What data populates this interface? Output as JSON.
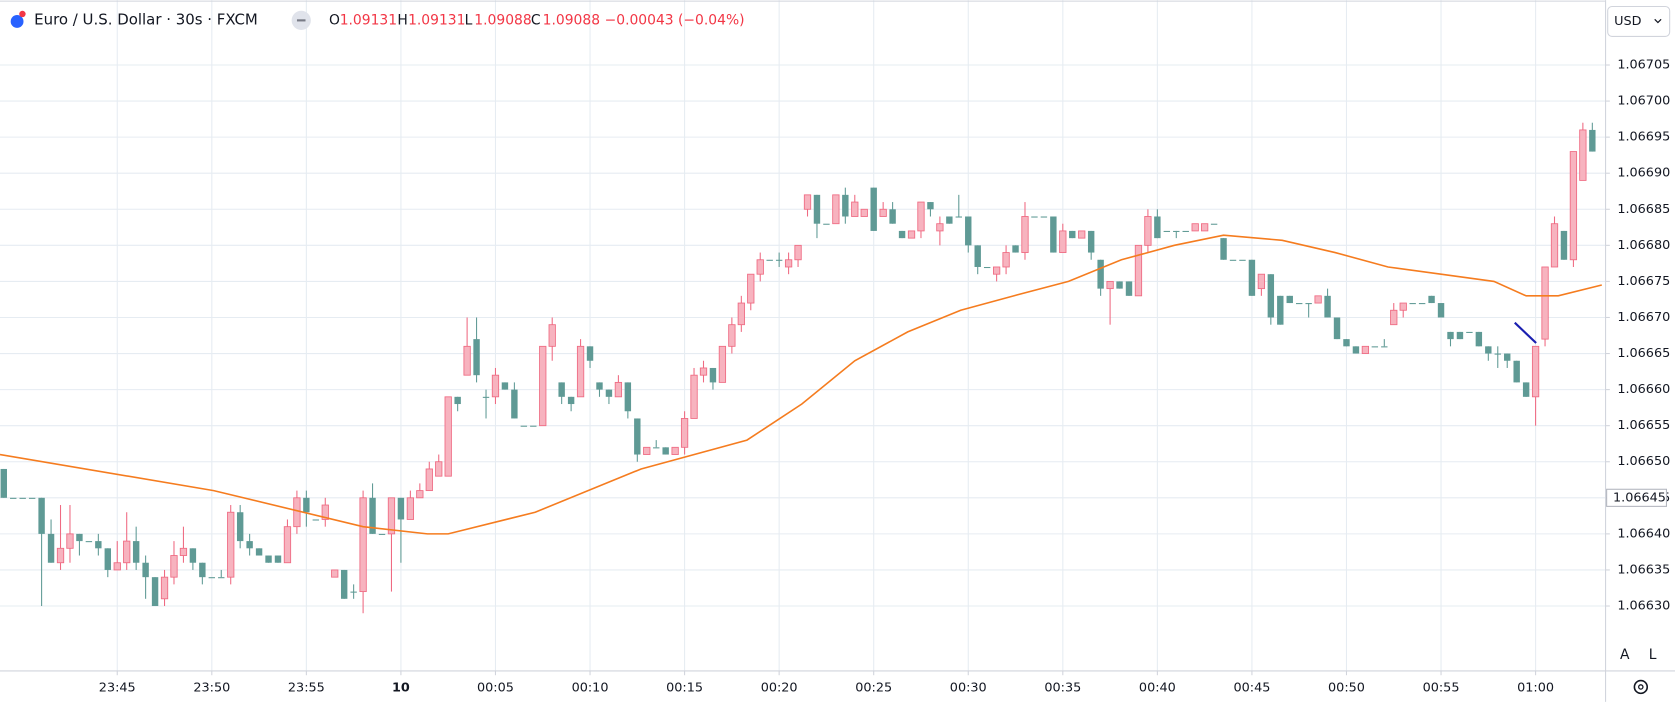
{
  "chart_data": {
    "type": "candlestick",
    "title": "Euro / U.S. Dollar · 30s · FXCM",
    "ohlc_header": {
      "o_label": "O",
      "o": "1.09131",
      "h_label": "H",
      "h": "1.09131",
      "l_label": "L",
      "l": "1.09088",
      "c_label": "C",
      "c": "1.09088",
      "change": "−0.00043 (−0.04%)"
    },
    "currency": "USD",
    "scale_buttons": [
      "A",
      "L"
    ],
    "up_color": "#f7b3bf",
    "up_border": "#ef6a82",
    "down_color": "#5f9a95",
    "x": [
      -21,
      -20.5,
      -20,
      -19.5,
      -19,
      -18.5,
      -18,
      -17.5,
      -17,
      -16.5,
      -16,
      -15.5,
      -15,
      -14.5,
      -14,
      -13.5,
      -13,
      -12.5,
      -12,
      -11.5,
      -11,
      -10.5,
      -10,
      -9.5,
      -9,
      -8.5,
      -8,
      -7.5,
      -7,
      -6.5,
      -6,
      -5.5,
      -5,
      -4.5,
      -4,
      -3.5,
      -3,
      -2.5,
      -2,
      -1.5,
      -1,
      -0.5,
      0,
      0.5,
      1,
      1.5,
      2,
      2.5,
      3,
      3.5,
      4,
      4.5,
      5,
      5.5,
      6,
      6.5,
      7,
      7.5,
      8,
      8.5,
      9,
      9.5,
      10,
      10.5,
      11,
      11.5,
      12,
      12.5,
      13,
      13.5,
      14,
      14.5,
      15,
      15.5,
      16,
      16.5,
      17,
      17.5,
      18,
      18.5,
      19,
      19.5,
      20,
      20.5,
      21,
      21.5,
      22,
      22.5,
      23,
      23.5,
      24,
      24.5,
      25,
      25.5,
      26,
      26.5,
      27,
      27.5,
      28,
      28.5,
      29,
      29.5,
      30,
      30.5,
      31,
      31.5,
      32,
      32.5,
      33,
      33.5,
      34,
      34.5,
      35,
      35.5,
      36,
      36.5,
      37,
      37.5,
      38,
      38.5,
      39,
      39.5,
      40,
      40.5,
      41,
      41.5,
      42,
      42.5,
      43,
      43.5,
      44,
      44.5,
      45,
      45.5,
      46,
      46.5,
      47,
      47.5,
      48,
      48.5,
      49,
      49.5,
      50,
      50.5,
      51,
      51.5,
      52,
      52.5,
      53,
      53.5,
      54,
      54.5,
      55,
      55.5,
      56,
      56.5,
      57,
      57.5,
      58,
      58.5,
      59,
      59.5,
      60,
      60.5,
      61,
      61.5,
      62,
      62.5,
      63
    ],
    "open": [
      1.06649,
      1.06645,
      1.06645,
      1.06645,
      1.06645,
      1.0664,
      1.06636,
      1.06638,
      1.0664,
      1.06639,
      1.06639,
      1.06638,
      1.06635,
      1.06636,
      1.06639,
      1.06636,
      1.06634,
      1.06631,
      1.06634,
      1.06637,
      1.06638,
      1.06636,
      1.06634,
      1.06634,
      1.06634,
      1.06643,
      1.06639,
      1.06638,
      1.06637,
      1.06637,
      1.06636,
      1.06641,
      1.06645,
      1.06642,
      1.06642,
      1.06634,
      1.06635,
      1.06632,
      1.06632,
      1.06645,
      1.0664,
      1.0664,
      1.06645,
      1.06642,
      1.06645,
      1.06646,
      1.06648,
      1.06648,
      1.06659,
      1.06662,
      1.06667,
      1.06659,
      1.06659,
      1.06661,
      1.0666,
      1.06655,
      1.06655,
      1.06655,
      1.06666,
      1.06661,
      1.06659,
      1.06659,
      1.06666,
      1.06661,
      1.0666,
      1.06659,
      1.06661,
      1.06656,
      1.06651,
      1.06652,
      1.06652,
      1.06651,
      1.06652,
      1.06656,
      1.06662,
      1.06663,
      1.06661,
      1.06666,
      1.06669,
      1.06672,
      1.06676,
      1.06678,
      1.06678,
      1.06677,
      1.06678,
      1.06685,
      1.06687,
      1.06683,
      1.06683,
      1.06687,
      1.06684,
      1.06684,
      1.06688,
      1.06684,
      1.06685,
      1.06682,
      1.06681,
      1.06682,
      1.06686,
      1.06682,
      1.06684,
      1.06684,
      1.06684,
      1.0668,
      1.06677,
      1.06676,
      1.06677,
      1.0668,
      1.06679,
      1.06684,
      1.06684,
      1.06684,
      1.06679,
      1.06682,
      1.06681,
      1.06682,
      1.06678,
      1.06674,
      1.06675,
      1.06675,
      1.06673,
      1.0668,
      1.06684,
      1.06682,
      1.06682,
      1.06682,
      1.06682,
      1.06682,
      1.06683,
      1.06681,
      1.06678,
      1.06678,
      1.06678,
      1.06674,
      1.06676,
      1.06673,
      1.06673,
      1.06672,
      1.06672,
      1.06672,
      1.06673,
      1.0667,
      1.06667,
      1.06666,
      1.06665,
      1.06666,
      1.06666,
      1.06669,
      1.06671,
      1.06672,
      1.06672,
      1.06673,
      1.06672,
      1.06668,
      1.06668,
      1.06668,
      1.06668,
      1.06666,
      1.06665,
      1.06665,
      1.06664,
      1.06661,
      1.06659,
      1.06667,
      1.06677,
      1.06682,
      1.06678,
      1.06689,
      1.06696
    ],
    "high": [
      1.06649,
      1.06645,
      1.06645,
      1.06645,
      1.06645,
      1.06642,
      1.06644,
      1.06644,
      1.0664,
      1.06639,
      1.0664,
      1.06638,
      1.06639,
      1.06643,
      1.06641,
      1.06637,
      1.06634,
      1.06635,
      1.06639,
      1.06641,
      1.06638,
      1.06636,
      1.06634,
      1.06635,
      1.06644,
      1.06644,
      1.0664,
      1.06638,
      1.06637,
      1.06637,
      1.06642,
      1.06646,
      1.06646,
      1.06642,
      1.06645,
      1.06635,
      1.06635,
      1.06633,
      1.06646,
      1.06647,
      1.0664,
      1.06645,
      1.06645,
      1.06646,
      1.06647,
      1.0665,
      1.06651,
      1.06659,
      1.06659,
      1.0667,
      1.0667,
      1.0666,
      1.06663,
      1.06661,
      1.06661,
      1.06655,
      1.06655,
      1.06666,
      1.0667,
      1.06661,
      1.06659,
      1.06667,
      1.06666,
      1.06661,
      1.0666,
      1.06662,
      1.06661,
      1.06656,
      1.06652,
      1.06653,
      1.06652,
      1.06652,
      1.06657,
      1.06663,
      1.06664,
      1.06663,
      1.06666,
      1.0667,
      1.06673,
      1.06676,
      1.06679,
      1.06678,
      1.06679,
      1.06679,
      1.0668,
      1.06687,
      1.06687,
      1.06683,
      1.06687,
      1.06688,
      1.06687,
      1.06685,
      1.06688,
      1.06686,
      1.06686,
      1.06682,
      1.06682,
      1.06686,
      1.06686,
      1.06684,
      1.06684,
      1.06687,
      1.06684,
      1.0668,
      1.06677,
      1.06677,
      1.0668,
      1.0668,
      1.06686,
      1.06684,
      1.06684,
      1.06684,
      1.06683,
      1.06682,
      1.06682,
      1.06682,
      1.06678,
      1.06675,
      1.06675,
      1.06675,
      1.0668,
      1.06685,
      1.06685,
      1.06682,
      1.06682,
      1.06682,
      1.06683,
      1.06683,
      1.06683,
      1.06681,
      1.06678,
      1.06678,
      1.06678,
      1.06676,
      1.06676,
      1.06673,
      1.06673,
      1.06672,
      1.06672,
      1.06673,
      1.06674,
      1.0667,
      1.06667,
      1.06666,
      1.06666,
      1.06666,
      1.06667,
      1.06672,
      1.06672,
      1.06672,
      1.06672,
      1.06673,
      1.06672,
      1.06668,
      1.06668,
      1.06668,
      1.06668,
      1.06666,
      1.06666,
      1.06665,
      1.06664,
      1.06661,
      1.06666,
      1.06677,
      1.06684,
      1.06682,
      1.06693,
      1.06697,
      1.06697
    ],
    "low": [
      1.06645,
      1.06645,
      1.06645,
      1.06645,
      1.0663,
      1.06636,
      1.06635,
      1.06636,
      1.06637,
      1.06639,
      1.06637,
      1.06634,
      1.06635,
      1.06635,
      1.06635,
      1.06631,
      1.0663,
      1.0663,
      1.06633,
      1.06636,
      1.06635,
      1.06633,
      1.06634,
      1.06634,
      1.06633,
      1.06638,
      1.06637,
      1.06637,
      1.06636,
      1.06636,
      1.06636,
      1.0664,
      1.06641,
      1.06642,
      1.06641,
      1.06634,
      1.06631,
      1.06631,
      1.06629,
      1.0664,
      1.0664,
      1.06632,
      1.06636,
      1.06642,
      1.06645,
      1.06646,
      1.06648,
      1.06648,
      1.06657,
      1.06662,
      1.06661,
      1.06656,
      1.06658,
      1.0666,
      1.06656,
      1.06655,
      1.06655,
      1.06655,
      1.06664,
      1.06658,
      1.06657,
      1.06659,
      1.06663,
      1.06659,
      1.06658,
      1.06659,
      1.06656,
      1.0665,
      1.06651,
      1.06652,
      1.06651,
      1.06651,
      1.06651,
      1.06656,
      1.06661,
      1.0666,
      1.06661,
      1.06665,
      1.06668,
      1.06671,
      1.06675,
      1.06678,
      1.06677,
      1.06676,
      1.06677,
      1.06684,
      1.06681,
      1.06683,
      1.06683,
      1.06683,
      1.06684,
      1.06684,
      1.06682,
      1.06684,
      1.06683,
      1.06681,
      1.06681,
      1.06681,
      1.06684,
      1.0668,
      1.06683,
      1.06684,
      1.06679,
      1.06676,
      1.06677,
      1.06675,
      1.06676,
      1.06679,
      1.06678,
      1.06684,
      1.06684,
      1.06679,
      1.06679,
      1.06681,
      1.06681,
      1.06678,
      1.06673,
      1.06669,
      1.06674,
      1.06673,
      1.06673,
      1.06679,
      1.06681,
      1.06682,
      1.06681,
      1.06682,
      1.06682,
      1.06682,
      1.06683,
      1.06678,
      1.06678,
      1.06678,
      1.06673,
      1.06673,
      1.06669,
      1.06669,
      1.06672,
      1.06672,
      1.0667,
      1.06672,
      1.0667,
      1.06667,
      1.06666,
      1.06665,
      1.06665,
      1.06666,
      1.06666,
      1.06669,
      1.0667,
      1.06672,
      1.06672,
      1.06672,
      1.0667,
      1.06666,
      1.06667,
      1.06668,
      1.06666,
      1.06664,
      1.06663,
      1.06663,
      1.06661,
      1.06659,
      1.06655,
      1.06666,
      1.06677,
      1.06678,
      1.06677,
      1.06689,
      1.06693
    ],
    "close": [
      1.06645,
      1.06645,
      1.06645,
      1.06645,
      1.0664,
      1.06636,
      1.06638,
      1.0664,
      1.06639,
      1.06639,
      1.06638,
      1.06635,
      1.06636,
      1.06639,
      1.06636,
      1.06634,
      1.0663,
      1.06634,
      1.06637,
      1.06638,
      1.06636,
      1.06634,
      1.06634,
      1.06634,
      1.06643,
      1.06639,
      1.06638,
      1.06637,
      1.06636,
      1.06636,
      1.06641,
      1.06645,
      1.06643,
      1.06642,
      1.06644,
      1.06635,
      1.06631,
      1.06632,
      1.06645,
      1.0664,
      1.0664,
      1.06645,
      1.06642,
      1.06645,
      1.06646,
      1.06649,
      1.0665,
      1.06659,
      1.06658,
      1.06666,
      1.06662,
      1.06659,
      1.06662,
      1.0666,
      1.06656,
      1.06655,
      1.06655,
      1.06666,
      1.06669,
      1.06659,
      1.06658,
      1.06666,
      1.06664,
      1.0666,
      1.06659,
      1.06661,
      1.06657,
      1.06651,
      1.06652,
      1.06652,
      1.06651,
      1.06652,
      1.06656,
      1.06662,
      1.06663,
      1.06661,
      1.06666,
      1.06669,
      1.06672,
      1.06676,
      1.06678,
      1.06678,
      1.06678,
      1.06678,
      1.0668,
      1.06687,
      1.06683,
      1.06683,
      1.06687,
      1.06684,
      1.06686,
      1.06685,
      1.06682,
      1.06685,
      1.06683,
      1.06681,
      1.06682,
      1.06686,
      1.06685,
      1.06683,
      1.06683,
      1.06684,
      1.0668,
      1.06677,
      1.06677,
      1.06677,
      1.06679,
      1.06679,
      1.06684,
      1.06684,
      1.06684,
      1.06679,
      1.06682,
      1.06681,
      1.06682,
      1.06679,
      1.06674,
      1.06675,
      1.06674,
      1.06673,
      1.0668,
      1.06684,
      1.06681,
      1.06682,
      1.06682,
      1.06682,
      1.06683,
      1.06683,
      1.06683,
      1.06678,
      1.06678,
      1.06678,
      1.06673,
      1.06676,
      1.0667,
      1.06669,
      1.06672,
      1.06672,
      1.06672,
      1.06673,
      1.0667,
      1.06667,
      1.06666,
      1.06665,
      1.06666,
      1.06666,
      1.06666,
      1.06671,
      1.06672,
      1.06672,
      1.06672,
      1.06672,
      1.0667,
      1.06667,
      1.06667,
      1.06668,
      1.06666,
      1.06665,
      1.06665,
      1.06664,
      1.06661,
      1.06659,
      1.06666,
      1.06677,
      1.06683,
      1.06678,
      1.06693,
      1.06696,
      1.06693
    ],
    "moving_average": {
      "color": "#f57c1f",
      "x": [
        -21.2,
        -9.9,
        -2.0,
        1.4,
        2.5,
        7.1,
        12.7,
        18.3,
        21.2,
        24.0,
        26.8,
        29.6,
        32.4,
        35.3,
        38.1,
        40.9,
        43.5,
        46.6,
        49.4,
        52.2,
        55.0,
        57.8,
        59.5,
        61.2,
        63.5
      ],
      "values": [
        1.06651,
        1.06646,
        1.06641,
        1.0664,
        1.0664,
        1.06643,
        1.06649,
        1.06653,
        1.06658,
        1.06664,
        1.06668,
        1.06671,
        1.06673,
        1.06675,
        1.06678,
        1.0668,
        1.066814,
        1.066807,
        1.06679,
        1.06677,
        1.06676,
        1.06675,
        1.06673,
        1.06673,
        1.066745
      ]
    },
    "crosshair_price": {
      "value": 1.06645,
      "label": "1.06645"
    },
    "xlim": [
      -21.2,
      63.7
    ],
    "ylim": [
      1.06621,
      1.06714
    ],
    "grid": true,
    "xticks": [
      {
        "value": -15,
        "label": "23:45"
      },
      {
        "value": -10,
        "label": "23:50"
      },
      {
        "value": -5,
        "label": "23:55"
      },
      {
        "value": 0,
        "label": "10"
      },
      {
        "value": 5,
        "label": "00:05"
      },
      {
        "value": 10,
        "label": "00:10"
      },
      {
        "value": 15,
        "label": "00:15"
      },
      {
        "value": 20,
        "label": "00:20"
      },
      {
        "value": 25,
        "label": "00:25"
      },
      {
        "value": 30,
        "label": "00:30"
      },
      {
        "value": 35,
        "label": "00:35"
      },
      {
        "value": 40,
        "label": "00:40"
      },
      {
        "value": 45,
        "label": "00:45"
      },
      {
        "value": 50,
        "label": "00:50"
      },
      {
        "value": 55,
        "label": "00:55"
      },
      {
        "value": 60,
        "label": "01:00"
      }
    ],
    "yticks": [
      {
        "value": 1.0663,
        "label": "1.06630"
      },
      {
        "value": 1.06635,
        "label": "1.06635"
      },
      {
        "value": 1.0664,
        "label": "1.06640"
      },
      {
        "value": 1.06645,
        "label": "1.06645"
      },
      {
        "value": 1.0665,
        "label": "1.06650"
      },
      {
        "value": 1.06655,
        "label": "1.06655"
      },
      {
        "value": 1.0666,
        "label": "1.06660"
      },
      {
        "value": 1.06665,
        "label": "1.06665"
      },
      {
        "value": 1.0667,
        "label": "1.06670"
      },
      {
        "value": 1.06675,
        "label": "1.06675"
      },
      {
        "value": 1.0668,
        "label": "1.06680"
      },
      {
        "value": 1.06685,
        "label": "1.06685"
      },
      {
        "value": 1.0669,
        "label": "1.06690"
      },
      {
        "value": 1.06695,
        "label": "1.06695"
      },
      {
        "value": 1.067,
        "label": "1.06700"
      },
      {
        "value": 1.06705,
        "label": "1.06705"
      }
    ]
  }
}
